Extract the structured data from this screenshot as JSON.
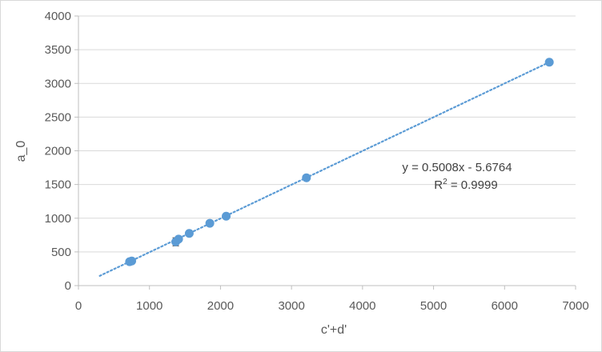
{
  "chart_data": {
    "type": "scatter",
    "title": "",
    "xlabel": "c'+d'",
    "ylabel": "a_0",
    "xlim": [
      0,
      7000
    ],
    "ylim": [
      0,
      4000
    ],
    "x_ticks": [
      0,
      1000,
      2000,
      3000,
      4000,
      5000,
      6000,
      7000
    ],
    "y_ticks": [
      0,
      500,
      1000,
      1500,
      2000,
      2500,
      3000,
      3500,
      4000
    ],
    "grid": "horizontal",
    "legend": "none",
    "marker_color": "#5b9bd5",
    "trendline_color": "#5b9bd5",
    "series": [
      {
        "points": [
          {
            "x": 720,
            "y": 355
          },
          {
            "x": 750,
            "y": 365
          },
          {
            "x": 1370,
            "y": 650,
            "yerr": 60
          },
          {
            "x": 1410,
            "y": 690
          },
          {
            "x": 1560,
            "y": 775
          },
          {
            "x": 1850,
            "y": 925
          },
          {
            "x": 2080,
            "y": 1030
          },
          {
            "x": 3210,
            "y": 1600
          },
          {
            "x": 6630,
            "y": 3315
          }
        ]
      }
    ],
    "trendline": {
      "type": "linear",
      "style": "dotted",
      "slope": 0.5008,
      "intercept": -5.6764,
      "x_range": [
        300,
        6630
      ],
      "equation": "y = 0.5008x - 5.6764",
      "r_squared_prefix": "R",
      "r_squared_sup": "2",
      "r_squared_value": " = 0.9999"
    }
  }
}
